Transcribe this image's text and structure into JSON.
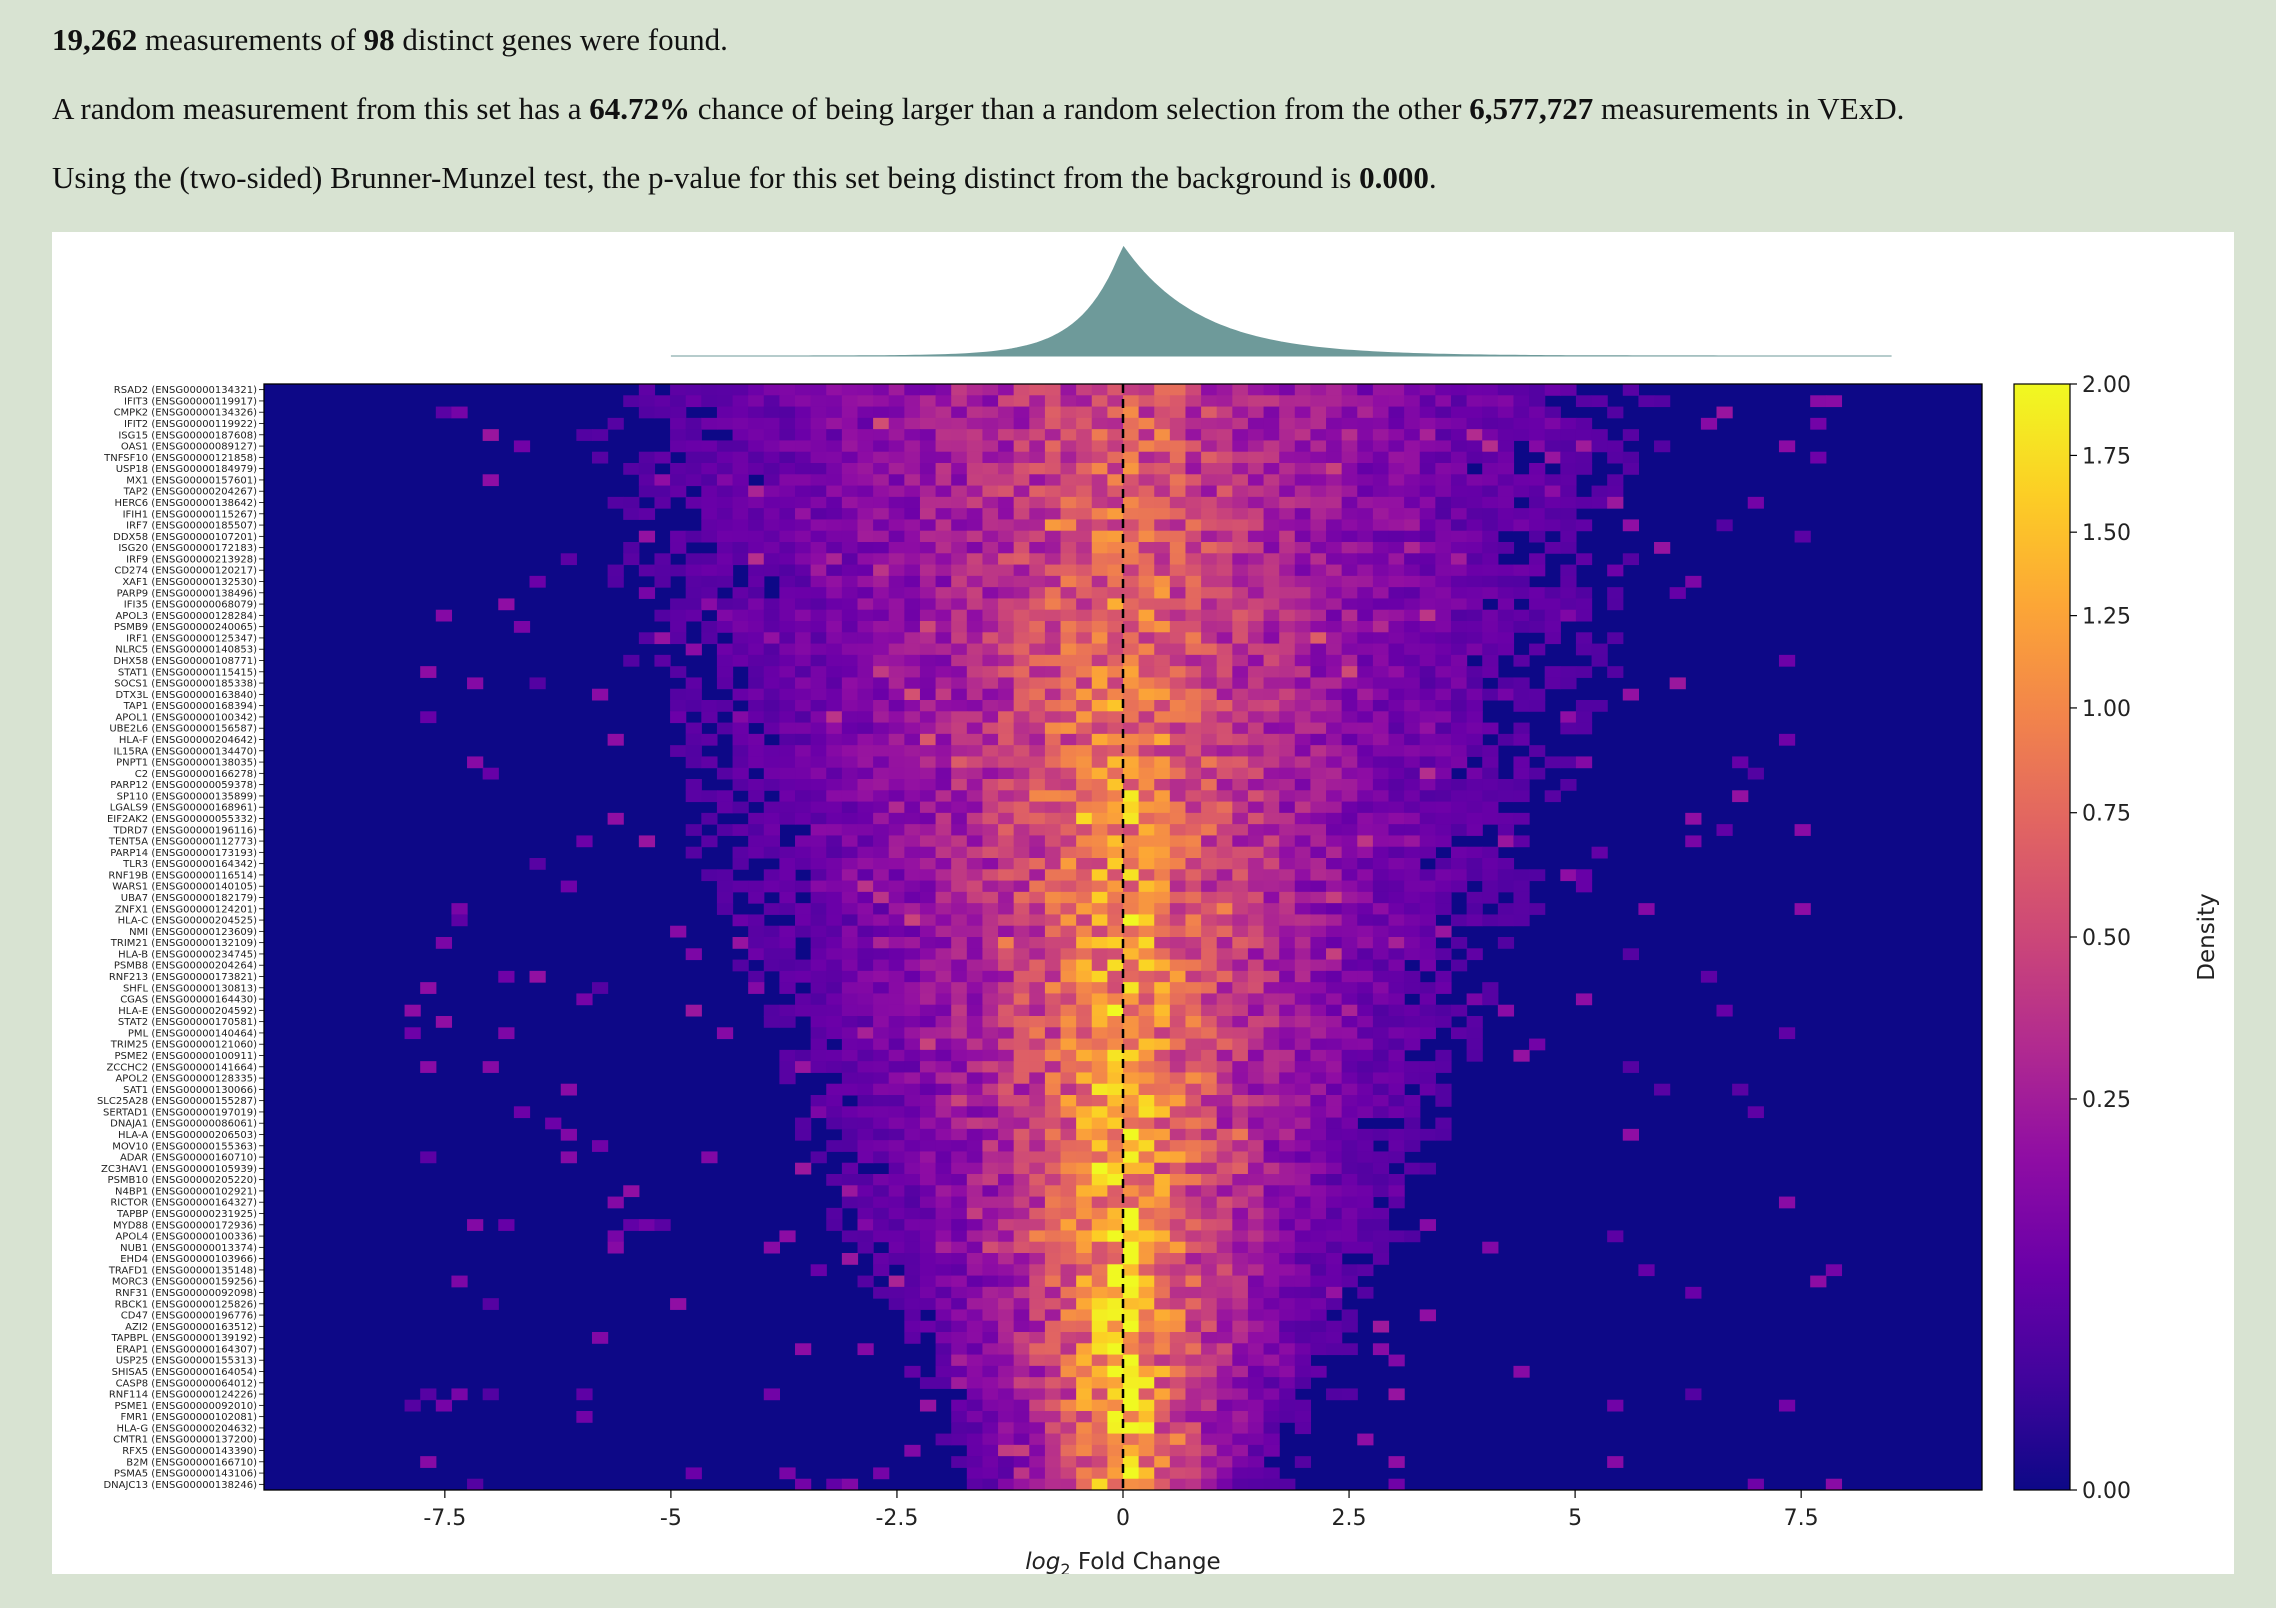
{
  "summary": {
    "line1": {
      "count": "19,262",
      "t1": " measurements of ",
      "genes": "98",
      "t2": " distinct genes were found."
    },
    "line2": {
      "t1": "A random measurement from this set has a ",
      "pct": "64.72%",
      "t2": " chance of being larger than a random selection from the other ",
      "other": "6,577,727",
      "t3": " measurements in VExD."
    },
    "line3": {
      "t1": "Using the (two-sided) Brunner-Munzel test, the p-value for this set being distinct from the background is ",
      "p": "0.000",
      "t2": "."
    }
  },
  "chart_data": {
    "type": "heatmap",
    "title": "",
    "xlabel_prefix": "log",
    "xlabel_sub": "2",
    "xlabel_rest": " Fold Change",
    "ylabel": "",
    "xlim": [
      -9.5,
      9.5
    ],
    "x_ticks": [
      {
        "value": -7.5,
        "label": "-7.5"
      },
      {
        "value": -5,
        "label": "-5"
      },
      {
        "value": -2.5,
        "label": "-2.5"
      },
      {
        "value": 0,
        "label": "0"
      },
      {
        "value": 2.5,
        "label": "2.5"
      },
      {
        "value": 5,
        "label": "5"
      },
      {
        "value": 7.5,
        "label": "7.5"
      }
    ],
    "reference_line_x": 0,
    "colorbar": {
      "label": "Density",
      "scale": "sqrt",
      "range": [
        0,
        2.0
      ],
      "ticks": [
        {
          "value": 0,
          "label": "0.00"
        },
        {
          "value": 0.25,
          "label": "0.25"
        },
        {
          "value": 0.5,
          "label": "0.50"
        },
        {
          "value": 0.75,
          "label": "0.75"
        },
        {
          "value": 1.0,
          "label": "1.00"
        },
        {
          "value": 1.25,
          "label": "1.25"
        },
        {
          "value": 1.5,
          "label": "1.50"
        },
        {
          "value": 1.75,
          "label": "1.75"
        },
        {
          "value": 2.0,
          "label": "2.00"
        }
      ],
      "colormap": "plasma"
    },
    "marginal": {
      "type": "density",
      "color": "#6e9a9a",
      "peak_x": 0.0
    },
    "genes": [
      "RSAD2 (ENSG00000134321)",
      "IFIT3 (ENSG00000119917)",
      "CMPK2 (ENSG00000134326)",
      "IFIT2 (ENSG00000119922)",
      "ISG15 (ENSG00000187608)",
      "OAS1 (ENSG00000089127)",
      "TNFSF10 (ENSG00000121858)",
      "USP18 (ENSG00000184979)",
      "MX1 (ENSG00000157601)",
      "TAP2 (ENSG00000204267)",
      "HERC6 (ENSG00000138642)",
      "IFIH1 (ENSG00000115267)",
      "IRF7 (ENSG00000185507)",
      "DDX58 (ENSG00000107201)",
      "ISG20 (ENSG00000172183)",
      "IRF9 (ENSG00000213928)",
      "CD274 (ENSG00000120217)",
      "XAF1 (ENSG00000132530)",
      "PARP9 (ENSG00000138496)",
      "IFI35 (ENSG00000068079)",
      "APOL3 (ENSG00000128284)",
      "PSMB9 (ENSG00000240065)",
      "IRF1 (ENSG00000125347)",
      "NLRC5 (ENSG00000140853)",
      "DHX58 (ENSG00000108771)",
      "STAT1 (ENSG00000115415)",
      "SOCS1 (ENSG00000185338)",
      "DTX3L (ENSG00000163840)",
      "TAP1 (ENSG00000168394)",
      "APOL1 (ENSG00000100342)",
      "UBE2L6 (ENSG00000156587)",
      "HLA-F (ENSG00000204642)",
      "IL15RA (ENSG00000134470)",
      "PNPT1 (ENSG00000138035)",
      "C2 (ENSG00000166278)",
      "PARP12 (ENSG00000059378)",
      "SP110 (ENSG00000135899)",
      "LGALS9 (ENSG00000168961)",
      "EIF2AK2 (ENSG00000055332)",
      "TDRD7 (ENSG00000196116)",
      "TENT5A (ENSG00000112773)",
      "PARP14 (ENSG00000173193)",
      "TLR3 (ENSG00000164342)",
      "RNF19B (ENSG00000116514)",
      "WARS1 (ENSG00000140105)",
      "UBA7 (ENSG00000182179)",
      "ZNFX1 (ENSG00000124201)",
      "HLA-C (ENSG00000204525)",
      "NMI (ENSG00000123609)",
      "TRIM21 (ENSG00000132109)",
      "HLA-B (ENSG00000234745)",
      "PSMB8 (ENSG00000204264)",
      "RNF213 (ENSG00000173821)",
      "SHFL (ENSG00000130813)",
      "CGAS (ENSG00000164430)",
      "HLA-E (ENSG00000204592)",
      "STAT2 (ENSG00000170581)",
      "PML (ENSG00000140464)",
      "TRIM25 (ENSG00000121060)",
      "PSME2 (ENSG00000100911)",
      "ZCCHC2 (ENSG00000141664)",
      "APOL2 (ENSG00000128335)",
      "SAT1 (ENSG00000130066)",
      "SLC25A28 (ENSG00000155287)",
      "SERTAD1 (ENSG00000197019)",
      "DNAJA1 (ENSG00000086061)",
      "HLA-A (ENSG00000206503)",
      "MOV10 (ENSG00000155363)",
      "ADAR (ENSG00000160710)",
      "ZC3HAV1 (ENSG00000105939)",
      "PSMB10 (ENSG00000205220)",
      "N4BP1 (ENSG00000102921)",
      "RICTOR (ENSG00000164327)",
      "TAPBP (ENSG00000231925)",
      "MYD88 (ENSG00000172936)",
      "APOL4 (ENSG00000100336)",
      "NUB1 (ENSG00000013374)",
      "EHD4 (ENSG00000103966)",
      "TRAFD1 (ENSG00000135148)",
      "MORC3 (ENSG00000159256)",
      "RNF31 (ENSG00000092098)",
      "RBCK1 (ENSG00000125826)",
      "CD47 (ENSG00000196776)",
      "AZI2 (ENSG00000163512)",
      "TAPBPL (ENSG00000139192)",
      "ERAP1 (ENSG00000164307)",
      "USP25 (ENSG00000155313)",
      "SHISA5 (ENSG00000164054)",
      "CASP8 (ENSG00000064012)",
      "RNF114 (ENSG00000124226)",
      "PSME1 (ENSG00000092010)",
      "FMR1 (ENSG00000102081)",
      "HLA-G (ENSG00000204632)",
      "CMTR1 (ENSG00000137200)",
      "RFX5 (ENSG00000143390)",
      "B2M (ENSG00000166710)",
      "PSMA5 (ENSG00000143106)",
      "DNAJC13 (ENSG00000138246)"
    ]
  }
}
